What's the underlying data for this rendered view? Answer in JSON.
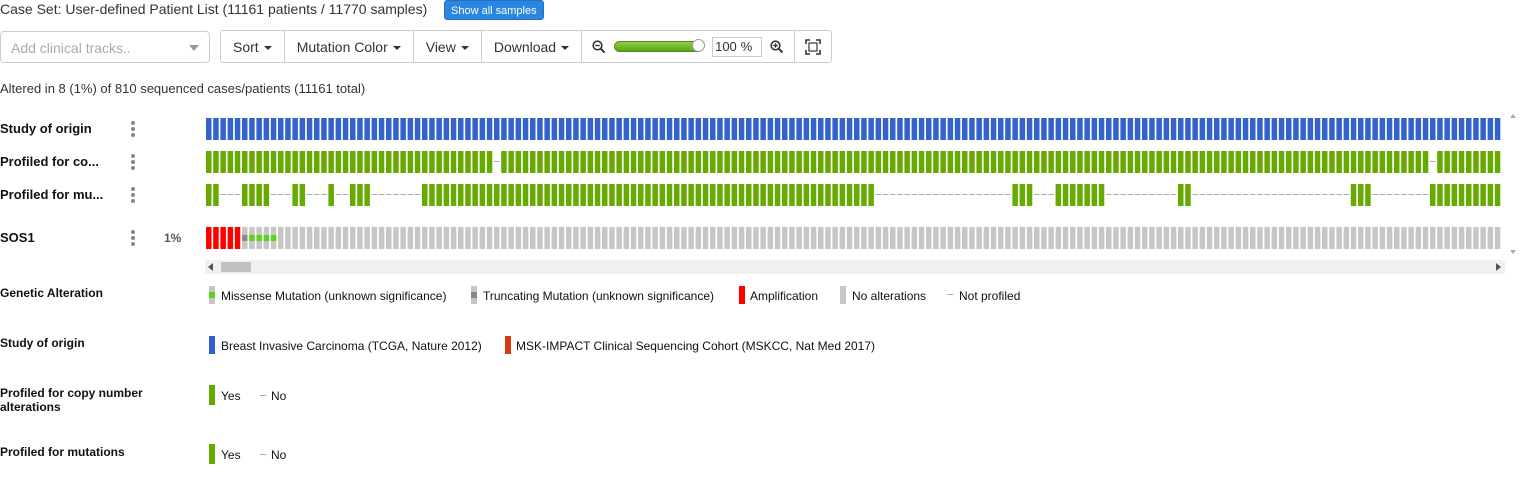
{
  "header": {
    "case_set_text": "Case Set: User-defined Patient List (11161 patients / 11770 samples)",
    "show_all_label": "Show all samples"
  },
  "controls": {
    "clinical_placeholder": "Add clinical tracks..",
    "sort_label": "Sort",
    "mutation_color_label": "Mutation Color",
    "view_label": "View",
    "download_label": "Download",
    "zoom_value": "100",
    "zoom_unit": "%",
    "zoom_level": 1.0
  },
  "summary": "Altered in 8 (1%) of 810 sequenced cases/patients (11161 total)",
  "tracks": {
    "study": "Study of origin",
    "profiled_cna": "Profiled for co...",
    "profiled_mut": "Profiled for mu...",
    "gene": "SOS1",
    "gene_pct": "1%"
  },
  "colors": {
    "study_tcga": "#3362cc",
    "study_msk": "#dc3912",
    "profiled_yes": "#66aa00",
    "amplification": "#ff0000",
    "missense": "#5bd51b",
    "truncating": "#888888",
    "no_alteration": "#c6c6c6",
    "not_profiled": "#cccccc",
    "button_blue": "#2986e2"
  },
  "legend": {
    "genetic": {
      "title": "Genetic Alteration",
      "items": [
        "Missense Mutation (unknown significance)",
        "Truncating Mutation (unknown significance)",
        "Amplification",
        "No alterations",
        "Not profiled"
      ]
    },
    "study": {
      "title": "Study of origin",
      "items": [
        "Breast Invasive Carcinoma (TCGA, Nature 2012)",
        "MSK-IMPACT Clinical Sequencing Cohort (MSKCC, Nat Med 2017)"
      ]
    },
    "profiled_cna": {
      "title_line1": "Profiled for copy number",
      "title_line2": "alterations",
      "yes": "Yes",
      "no": "No"
    },
    "profiled_mut": {
      "title": "Profiled for mutations",
      "yes": "Yes",
      "no": "No"
    }
  }
}
